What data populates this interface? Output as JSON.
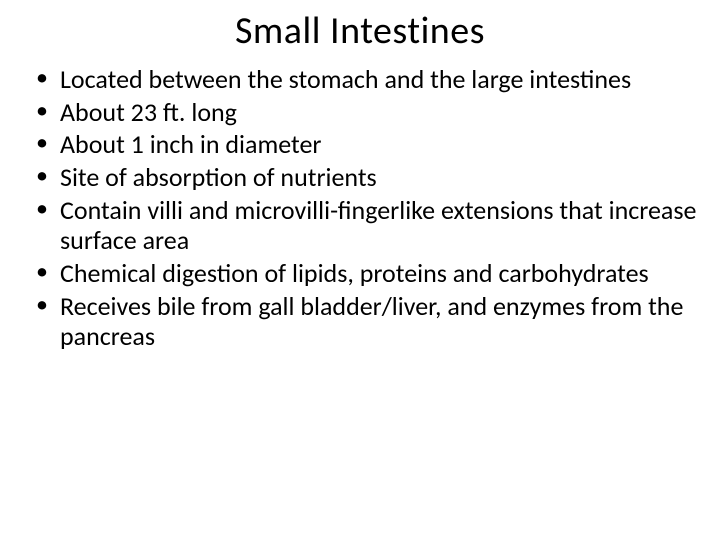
{
  "slide": {
    "title": "Small Intestines",
    "title_fontsize": 38,
    "title_color": "#000000",
    "background_color": "#ffffff",
    "bullet_fontsize": 26,
    "bullet_color": "#000000",
    "bullet_marker": "•",
    "bullets": [
      "Located between the stomach and the large intestines",
      "About 23 ft. long",
      "About 1 inch in diameter",
      "Site of absorption of nutrients",
      "Contain villi and microvilli-fingerlike extensions that increase surface area",
      "Chemical digestion of lipids, proteins and carbohydrates",
      "Receives bile from gall bladder/liver, and enzymes from the pancreas"
    ]
  }
}
